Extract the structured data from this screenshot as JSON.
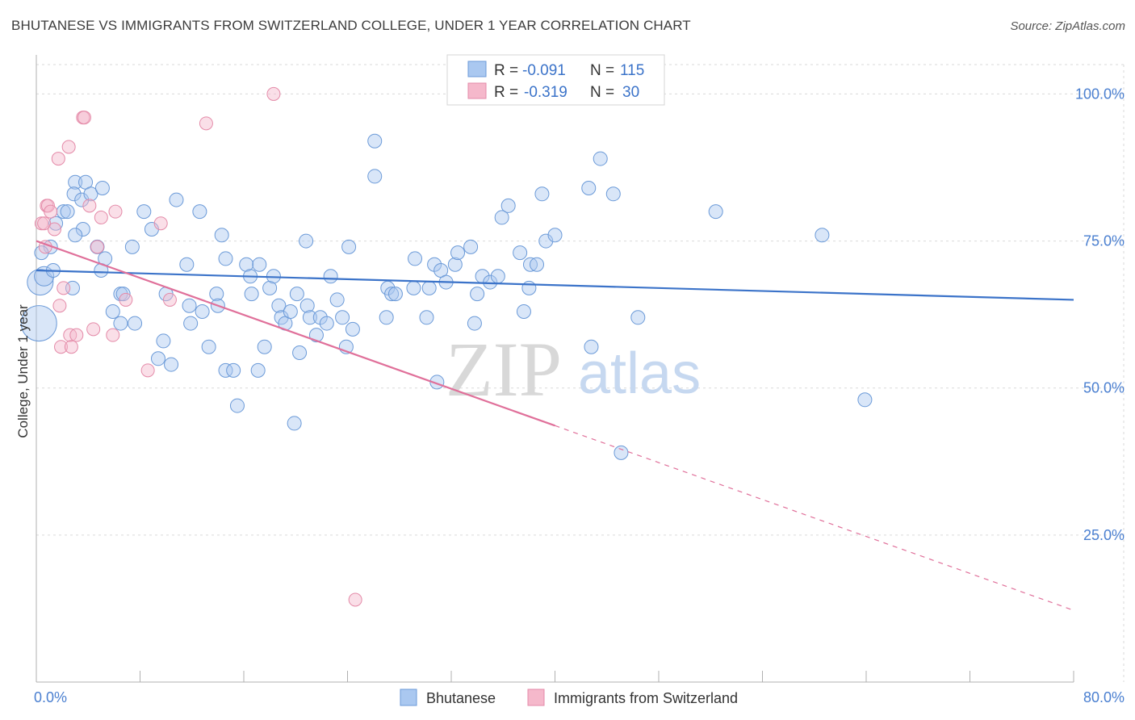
{
  "title": "BHUTANESE VS IMMIGRANTS FROM SWITZERLAND COLLEGE, UNDER 1 YEAR CORRELATION CHART",
  "source": "Source: ZipAtlas.com",
  "watermark": {
    "zip": "ZIP",
    "atlas": "atlas"
  },
  "colors": {
    "blue": "#3b73c9",
    "blue_fill": "#aac8f0",
    "pink": "#e0709a",
    "pink_fill": "#f5b8cb",
    "grid": "#d9d9d9",
    "axis_label": "#4a7fd0"
  },
  "legend": {
    "r_label": "R =",
    "n_label": "N =",
    "rows": [
      {
        "r": "-0.091",
        "n": "115"
      },
      {
        "r": "-0.319",
        "n": "30"
      }
    ]
  },
  "chart_data": {
    "type": "scatter",
    "title": "BHUTANESE VS IMMIGRANTS FROM SWITZERLAND COLLEGE, UNDER 1 YEAR CORRELATION CHART",
    "xlabel": "",
    "ylabel": "College, Under 1 year",
    "xlim": [
      0,
      80
    ],
    "ylim": [
      0,
      105
    ],
    "x_tick_labels": [
      "0.0%",
      "80.0%"
    ],
    "y_ticks": [
      25,
      50,
      75,
      100
    ],
    "y_tick_labels": [
      "25.0%",
      "50.0%",
      "75.0%",
      "100.0%"
    ],
    "grid": true,
    "legend_position": "top-center",
    "series": [
      {
        "name": "Bhutanese",
        "color": "#3b73c9",
        "trend": {
          "x": [
            0,
            80
          ],
          "y": [
            70.0,
            65.0
          ]
        },
        "points": [
          [
            0.2,
            61
          ],
          [
            0.3,
            68
          ],
          [
            0.6,
            69
          ],
          [
            1.1,
            74
          ],
          [
            1.5,
            78
          ],
          [
            2.1,
            80
          ],
          [
            2.4,
            80
          ],
          [
            3.0,
            85
          ],
          [
            2.9,
            83
          ],
          [
            3.5,
            82
          ],
          [
            3.6,
            77
          ],
          [
            3.0,
            76
          ],
          [
            3.8,
            85
          ],
          [
            4.2,
            83
          ],
          [
            5.1,
            84
          ],
          [
            4.7,
            74
          ],
          [
            5.0,
            70
          ],
          [
            5.3,
            72
          ],
          [
            5.9,
            63
          ],
          [
            6.5,
            66
          ],
          [
            6.7,
            66
          ],
          [
            6.5,
            61
          ],
          [
            7.4,
            74
          ],
          [
            7.6,
            61
          ],
          [
            8.3,
            80
          ],
          [
            8.9,
            77
          ],
          [
            9.4,
            55
          ],
          [
            10.4,
            54
          ],
          [
            10.0,
            66
          ],
          [
            9.8,
            58
          ],
          [
            10.8,
            82
          ],
          [
            11.6,
            71
          ],
          [
            11.9,
            61
          ],
          [
            11.8,
            64
          ],
          [
            12.6,
            80
          ],
          [
            12.8,
            63
          ],
          [
            13.3,
            57
          ],
          [
            13.9,
            66
          ],
          [
            14.0,
            64
          ],
          [
            14.3,
            76
          ],
          [
            14.6,
            72
          ],
          [
            14.6,
            53
          ],
          [
            15.2,
            53
          ],
          [
            15.5,
            47
          ],
          [
            16.2,
            71
          ],
          [
            16.5,
            69
          ],
          [
            16.6,
            66
          ],
          [
            17.2,
            71
          ],
          [
            17.1,
            53
          ],
          [
            17.6,
            57
          ],
          [
            18.0,
            67
          ],
          [
            18.3,
            69
          ],
          [
            18.7,
            64
          ],
          [
            18.9,
            62
          ],
          [
            19.2,
            61
          ],
          [
            19.6,
            63
          ],
          [
            20.3,
            56
          ],
          [
            20.1,
            66
          ],
          [
            19.9,
            44
          ],
          [
            20.8,
            75
          ],
          [
            20.9,
            64
          ],
          [
            21.1,
            62
          ],
          [
            21.6,
            59
          ],
          [
            21.9,
            62
          ],
          [
            22.4,
            61
          ],
          [
            22.7,
            69
          ],
          [
            23.2,
            65
          ],
          [
            23.6,
            62
          ],
          [
            23.9,
            57
          ],
          [
            24.1,
            74
          ],
          [
            24.4,
            60
          ],
          [
            26.1,
            92
          ],
          [
            26.1,
            86
          ],
          [
            27.0,
            62
          ],
          [
            27.1,
            67
          ],
          [
            27.4,
            66
          ],
          [
            27.7,
            66
          ],
          [
            29.1,
            67
          ],
          [
            29.2,
            72
          ],
          [
            30.1,
            62
          ],
          [
            30.3,
            67
          ],
          [
            30.7,
            71
          ],
          [
            30.9,
            51
          ],
          [
            31.2,
            70
          ],
          [
            31.6,
            68
          ],
          [
            32.3,
            71
          ],
          [
            32.5,
            73
          ],
          [
            33.5,
            74
          ],
          [
            33.8,
            61
          ],
          [
            34.0,
            66
          ],
          [
            34.4,
            69
          ],
          [
            35.0,
            68
          ],
          [
            35.9,
            79
          ],
          [
            35.6,
            69
          ],
          [
            36.4,
            81
          ],
          [
            37.3,
            73
          ],
          [
            37.6,
            63
          ],
          [
            38.1,
            71
          ],
          [
            38.0,
            67
          ],
          [
            38.6,
            71
          ],
          [
            39.0,
            83
          ],
          [
            39.3,
            75
          ],
          [
            40.0,
            76
          ],
          [
            42.6,
            84
          ],
          [
            42.8,
            57
          ],
          [
            43.5,
            89
          ],
          [
            44.5,
            83
          ],
          [
            45.1,
            39
          ],
          [
            46.4,
            62
          ],
          [
            52.4,
            80
          ],
          [
            60.6,
            76
          ],
          [
            63.9,
            48
          ],
          [
            0.4,
            73
          ],
          [
            1.3,
            70
          ],
          [
            2.8,
            67
          ]
        ]
      },
      {
        "name": "Immigrants from Switzerland",
        "color": "#e0709a",
        "trend": {
          "x": [
            0,
            40,
            80
          ],
          "y": [
            75.0,
            43.6,
            12.2
          ],
          "solid_until_x": 40
        },
        "points": [
          [
            0.4,
            78
          ],
          [
            0.6,
            78
          ],
          [
            0.7,
            74
          ],
          [
            0.8,
            81
          ],
          [
            0.9,
            81
          ],
          [
            1.1,
            80
          ],
          [
            1.4,
            77
          ],
          [
            1.7,
            89
          ],
          [
            1.8,
            64
          ],
          [
            1.9,
            57
          ],
          [
            2.1,
            67
          ],
          [
            2.6,
            59
          ],
          [
            2.7,
            57
          ],
          [
            2.5,
            91
          ],
          [
            3.6,
            96
          ],
          [
            3.7,
            96
          ],
          [
            3.1,
            59
          ],
          [
            4.1,
            81
          ],
          [
            4.4,
            60
          ],
          [
            4.7,
            74
          ],
          [
            5.0,
            79
          ],
          [
            5.9,
            59
          ],
          [
            6.1,
            80
          ],
          [
            6.9,
            65
          ],
          [
            8.6,
            53
          ],
          [
            9.6,
            78
          ],
          [
            10.3,
            65
          ],
          [
            13.1,
            95
          ],
          [
            18.3,
            100
          ],
          [
            24.6,
            14
          ]
        ]
      }
    ]
  },
  "bottom_legend": [
    {
      "label": "Bhutanese"
    },
    {
      "label": "Immigrants from Switzerland"
    }
  ]
}
